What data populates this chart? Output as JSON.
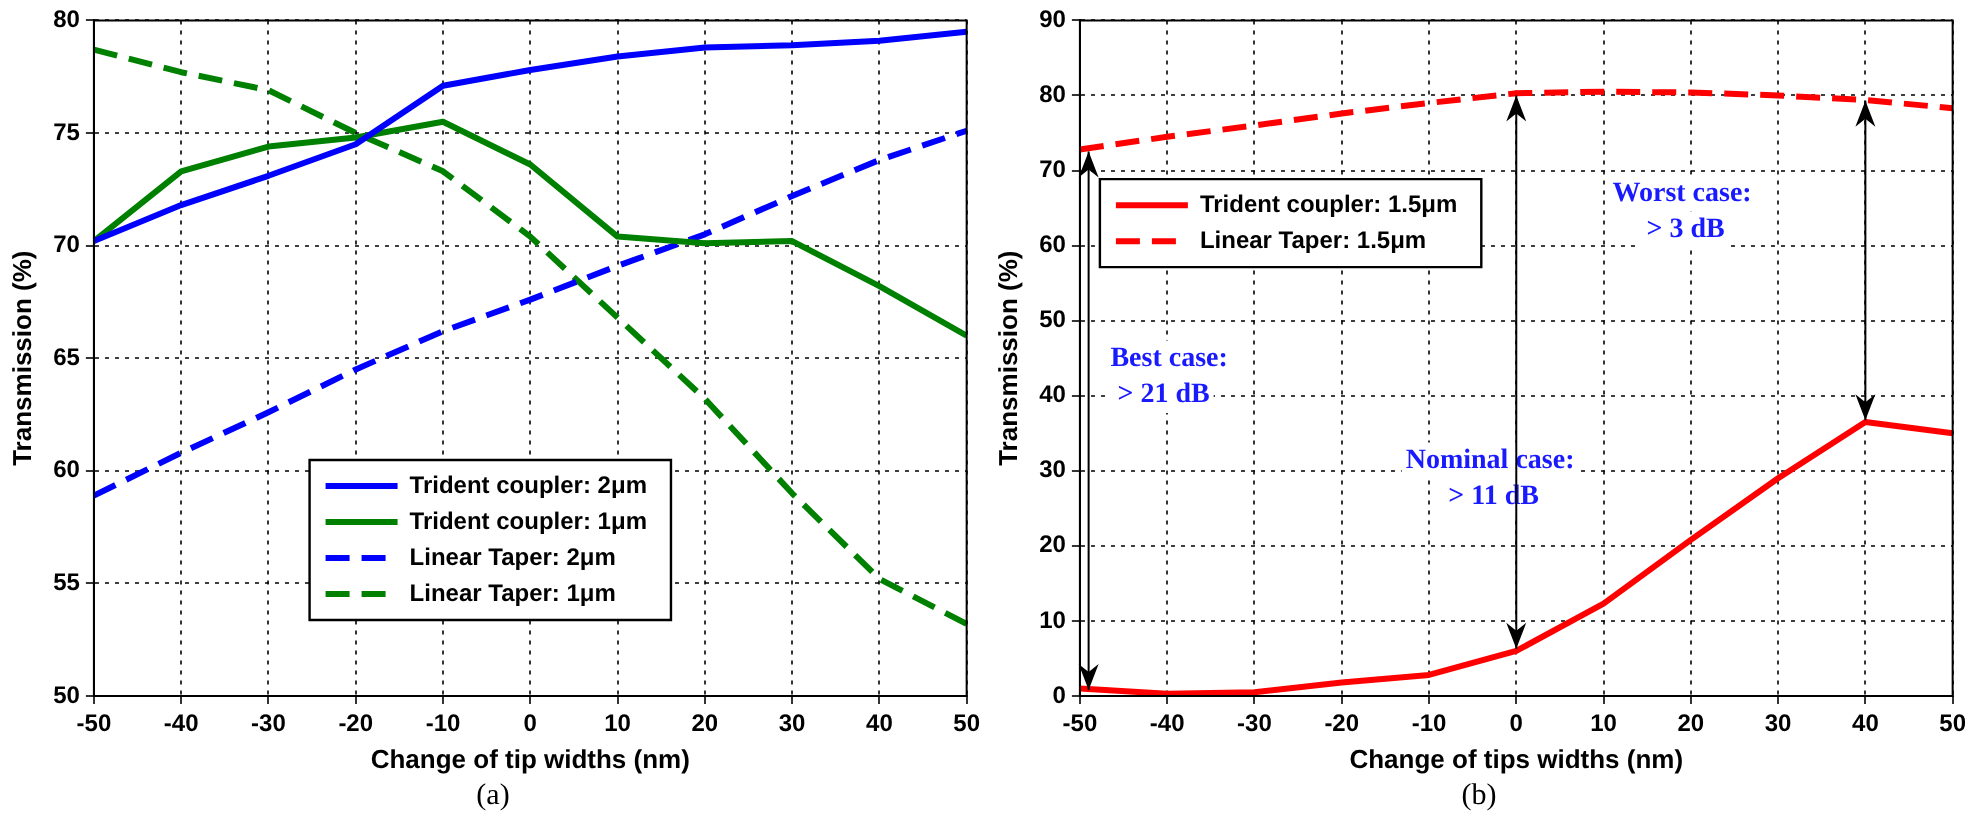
{
  "chart_data": [
    {
      "type": "line",
      "xlabel": "Change of tip widths (nm)",
      "ylabel": "Transmission (%)",
      "x": [
        -50,
        -40,
        -30,
        -20,
        -10,
        0,
        10,
        20,
        30,
        40,
        50
      ],
      "xlim": [
        -50,
        50
      ],
      "xticks": [
        -50,
        -40,
        -30,
        -20,
        -10,
        0,
        10,
        20,
        30,
        40,
        50
      ],
      "ylim": [
        50,
        80
      ],
      "yticks": [
        50,
        55,
        60,
        65,
        70,
        75,
        80
      ],
      "grid": true,
      "legend": "bottom",
      "annotations": [
        "(a)"
      ],
      "series": [
        {
          "name": "Trident coupler: 2μm",
          "color": "#0000ff",
          "line_style": "solid",
          "values": [
            70.2,
            71.8,
            73.1,
            74.5,
            77.1,
            77.8,
            78.4,
            78.8,
            78.9,
            79.1,
            79.5
          ]
        },
        {
          "name": "Trident coupler: 1μm",
          "color": "#008000",
          "line_style": "solid",
          "values": [
            70.2,
            73.3,
            74.4,
            74.8,
            75.5,
            73.6,
            70.4,
            70.1,
            70.2,
            68.2,
            66.0
          ]
        },
        {
          "name": "Linear Taper: 2μm",
          "color": "#0000ff",
          "line_style": "dashed",
          "values": [
            58.9,
            60.8,
            62.6,
            64.5,
            66.2,
            67.6,
            69.1,
            70.5,
            72.2,
            73.8,
            75.1
          ]
        },
        {
          "name": "Linear Taper: 1μm",
          "color": "#008000",
          "line_style": "dashed",
          "values": [
            78.7,
            77.7,
            76.9,
            75.0,
            73.3,
            70.4,
            66.8,
            63.2,
            59.0,
            55.2,
            53.2
          ]
        }
      ]
    },
    {
      "type": "line",
      "xlabel": "Change of tips widths (nm)",
      "ylabel": "Transmission (%)",
      "x": [
        -50,
        -40,
        -30,
        -20,
        -10,
        0,
        10,
        20,
        30,
        40,
        50
      ],
      "xlim": [
        -50,
        50
      ],
      "xticks": [
        -50,
        -40,
        -30,
        -20,
        -10,
        0,
        10,
        20,
        30,
        40,
        50
      ],
      "ylim": [
        0,
        90
      ],
      "yticks": [
        0,
        10,
        20,
        30,
        40,
        50,
        60,
        70,
        80,
        90
      ],
      "grid": true,
      "legend": "top left",
      "annotations": [
        "Best case:\n> 21 dB",
        "Nominal case:\n> 11 dB",
        "Worst case:\n> 3 dB",
        "(b)"
      ],
      "series": [
        {
          "name": "Trident coupler: 1.5μm",
          "color": "#ff0000",
          "line_style": "solid",
          "values": [
            1.0,
            0.3,
            0.5,
            1.8,
            2.8,
            6.0,
            12.3,
            20.8,
            29.0,
            36.5,
            35.0
          ]
        },
        {
          "name": "Linear Taper: 1.5μm",
          "color": "#ff0000",
          "line_style": "dashed",
          "values": [
            72.8,
            74.5,
            76.0,
            77.6,
            79.0,
            80.3,
            80.5,
            80.4,
            80.0,
            79.4,
            78.3
          ]
        }
      ]
    }
  ]
}
